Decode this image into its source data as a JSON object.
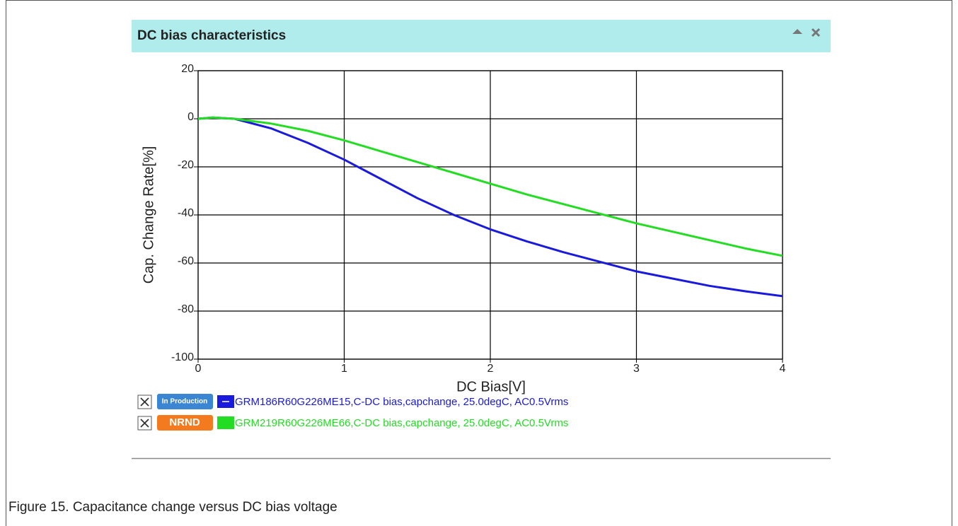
{
  "chart_data": {
    "type": "line",
    "title": "DC bias characteristics",
    "xlabel": "DC Bias[V]",
    "ylabel": "Cap. Change Rate[%]",
    "x": [
      0,
      0.1,
      0.25,
      0.5,
      0.75,
      1,
      1.25,
      1.5,
      1.75,
      2,
      2.25,
      2.5,
      2.75,
      3,
      3.25,
      3.5,
      3.75,
      4
    ],
    "series": [
      {
        "name": "GRM186R60G226ME15,C-DC bias,capchange, 25.0degC, AC0.5Vrms",
        "status": "In Production",
        "badge_color": "#3a86d2",
        "color": "#1a1adc",
        "values": [
          0,
          0.5,
          0,
          -4,
          -10,
          -17,
          -25,
          -33,
          -40,
          -46,
          -51,
          -55.5,
          -59.5,
          -63.5,
          -66.5,
          -69.5,
          -71.8,
          -73.8
        ]
      },
      {
        "name": "GRM219R60G226ME66,C-DC bias,capchange, 25.0degC, AC0.5Vrms",
        "status": "NRND",
        "badge_color": "#f47a1f",
        "color": "#22dd22",
        "values": [
          0,
          0.5,
          0,
          -2,
          -5,
          -9,
          -13.5,
          -18,
          -22.5,
          -27,
          -31.5,
          -35.5,
          -39.5,
          -43.5,
          -47,
          -50.5,
          -54,
          -57
        ]
      }
    ],
    "xlim": [
      0,
      4
    ],
    "xticks": [
      0,
      1,
      2,
      3,
      4
    ],
    "ylim": [
      -100,
      20
    ],
    "yticks": [
      -100,
      -80,
      -60,
      -40,
      -20,
      0,
      20
    ],
    "grid": true
  },
  "caption": "Figure 15.  Capacitance change versus DC bias voltage"
}
